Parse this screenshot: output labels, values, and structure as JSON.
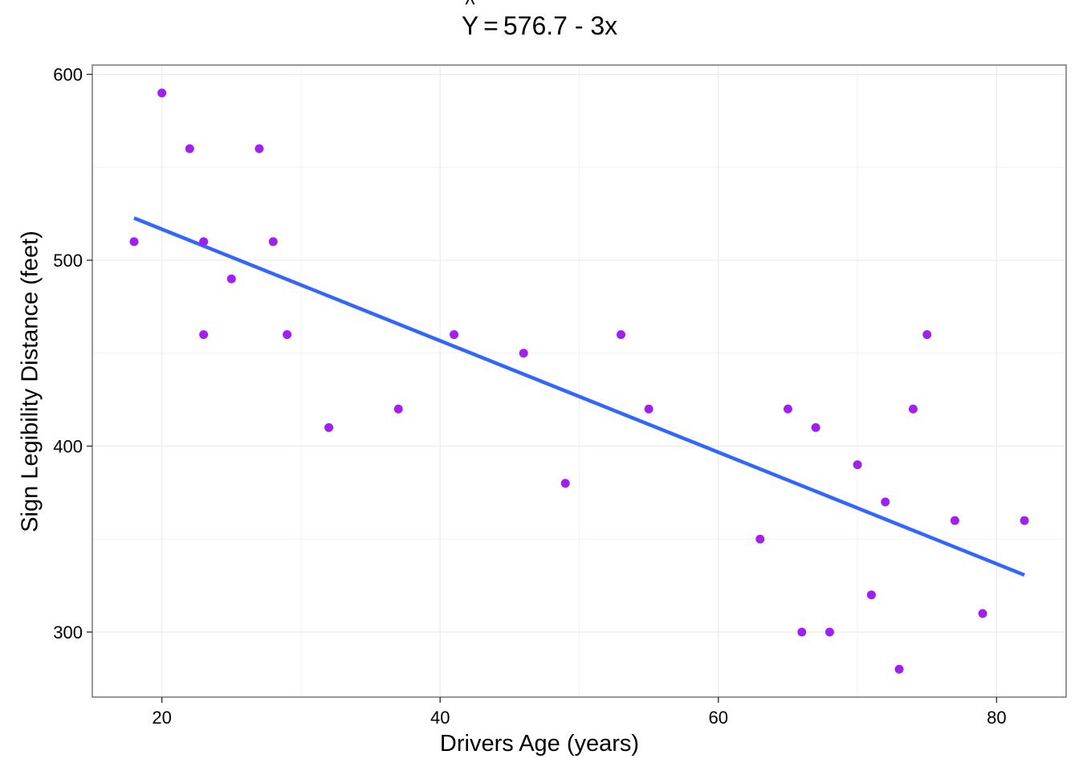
{
  "chart_data": {
    "type": "scatter",
    "title": {
      "hat_symbol": "^",
      "y_symbol": "Y",
      "equals": "=",
      "rhs": "576.7 - 3x"
    },
    "xlabel": "Drivers Age (years)",
    "ylabel": "Sign Legibility Distance (feet)",
    "xlim": [
      15,
      85
    ],
    "ylim": [
      265,
      605
    ],
    "xticks": [
      20,
      40,
      60,
      80
    ],
    "yticks": [
      300,
      400,
      500,
      600
    ],
    "x_minor_gridlines": [
      30,
      50,
      70
    ],
    "y_minor_gridlines": [
      350,
      450,
      550
    ],
    "grid": true,
    "legend": "none",
    "points": {
      "x": [
        18,
        20,
        22,
        23,
        23,
        25,
        27,
        28,
        29,
        32,
        37,
        41,
        46,
        49,
        53,
        55,
        63,
        65,
        66,
        67,
        68,
        70,
        71,
        72,
        73,
        74,
        75,
        77,
        79,
        82
      ],
      "y": [
        510,
        590,
        560,
        510,
        460,
        490,
        560,
        510,
        460,
        410,
        420,
        460,
        450,
        380,
        460,
        420,
        350,
        420,
        300,
        410,
        300,
        390,
        320,
        370,
        280,
        420,
        460,
        360,
        310,
        360
      ]
    },
    "regression_line": {
      "intercept": 576.7,
      "slope": -3.0,
      "x_range": [
        18,
        82
      ]
    },
    "colors": {
      "points": "#A020F0",
      "line": "#3366FF",
      "grid": "#EBEBEB",
      "panel_border": "#7F7F7F",
      "text": "#000000"
    }
  }
}
